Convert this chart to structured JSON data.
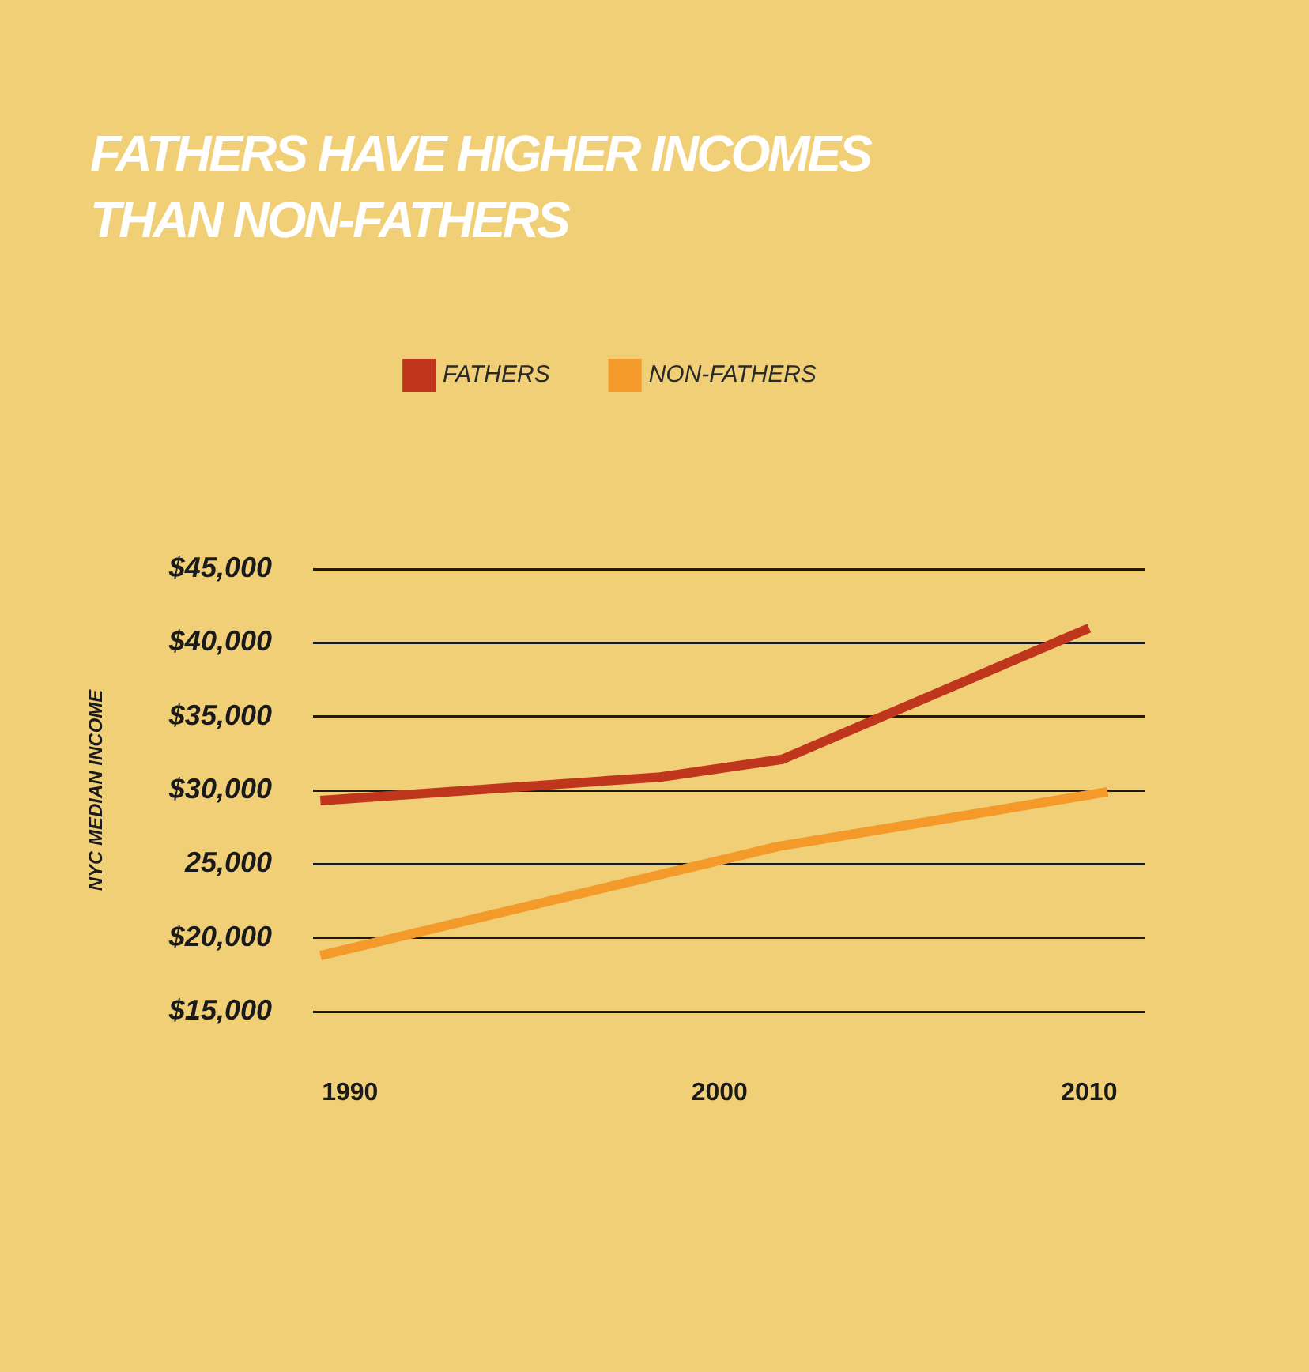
{
  "chart_data": {
    "type": "line",
    "title": "FATHERS HAVE HIGHER INCOMES THAN NON-FATHERS",
    "ylabel": "NYC MEDIAN INCOME",
    "xlim": [
      1989,
      2011.5
    ],
    "xticks": [
      1990,
      2000,
      2010
    ],
    "ylim": [
      15000,
      45000
    ],
    "yticks": [
      {
        "value": 15000,
        "label": "$15,000"
      },
      {
        "value": 20000,
        "label": "$20,000"
      },
      {
        "value": 25000,
        "label": "25,000"
      },
      {
        "value": 30000,
        "label": "$30,000"
      },
      {
        "value": 35000,
        "label": "$35,000"
      },
      {
        "value": 40000,
        "label": "$40,000"
      },
      {
        "value": 45000,
        "label": "$45,000"
      }
    ],
    "grid": "y",
    "legend": "top",
    "marker": "none",
    "line_style": "solid",
    "series": [
      {
        "name": "FATHERS",
        "color": "#c0361c",
        "x": [
          1989.2,
          1998.4,
          2001.7,
          2010
        ],
        "values": [
          29300,
          30900,
          32100,
          41000
        ]
      },
      {
        "name": "NON-FATHERS",
        "color": "#f39a2b",
        "x": [
          1989.2,
          2001.6,
          2010.5
        ],
        "values": [
          18800,
          26200,
          29900
        ]
      }
    ]
  }
}
